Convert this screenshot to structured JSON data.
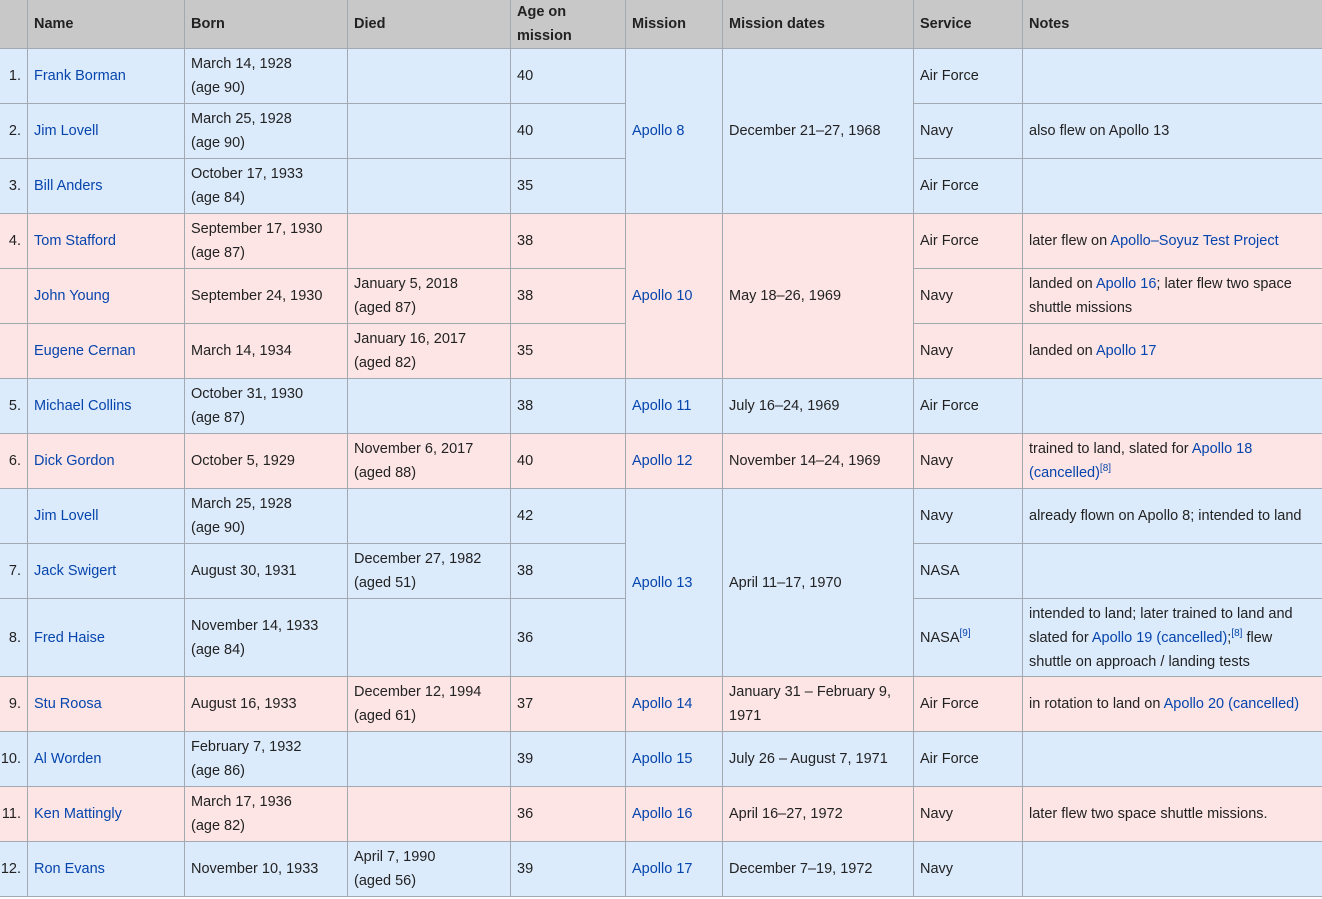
{
  "headers": {
    "num": "",
    "name": "Name",
    "born": "Born",
    "died": "Died",
    "age": "Age on mission",
    "mission": "Mission",
    "dates": "Mission dates",
    "service": "Service",
    "notes": "Notes"
  },
  "rows": [
    {
      "num": "1.",
      "name": "Frank Borman",
      "born": "March 14, 1928",
      "born_age": "(age 90)",
      "died": "",
      "died_age": "",
      "age": "40",
      "service": "Air Force"
    },
    {
      "num": "2.",
      "name": "Jim Lovell",
      "born": "March 25, 1928",
      "born_age": "(age 90)",
      "died": "",
      "died_age": "",
      "age": "40",
      "service": "Navy",
      "notes": "also flew on Apollo 13"
    },
    {
      "num": "3.",
      "name": "Bill Anders",
      "born": "October 17, 1933",
      "born_age": "(age 84)",
      "died": "",
      "died_age": "",
      "age": "35",
      "service": "Air Force"
    },
    {
      "num": "4.",
      "name": "Tom Stafford",
      "born": "September 17, 1930",
      "born_age": "(age 87)",
      "died": "",
      "died_age": "",
      "age": "38",
      "service": "Air Force",
      "notes_pre": "later flew on ",
      "notes_link": "Apollo–Soyuz Test Project"
    },
    {
      "num": "",
      "name": "John Young",
      "born": "September 24, 1930",
      "died": "January 5, 2018",
      "died_age": "(aged 87)",
      "age": "38",
      "service": "Navy",
      "notes_pre": "landed on ",
      "notes_link": "Apollo 16",
      "notes_post": "; later flew two space shuttle missions"
    },
    {
      "num": "",
      "name": "Eugene Cernan",
      "born": "March 14, 1934",
      "died": "January 16, 2017",
      "died_age": "(aged 82)",
      "age": "35",
      "service": "Navy",
      "notes_pre": "landed on ",
      "notes_link": "Apollo 17"
    },
    {
      "num": "5.",
      "name": "Michael Collins",
      "born": "October 31, 1930",
      "born_age": "(age 87)",
      "age": "38",
      "service": "Air Force"
    },
    {
      "num": "6.",
      "name": "Dick Gordon",
      "born": "October 5, 1929",
      "died": "November 6, 2017",
      "died_age": "(aged 88)",
      "age": "40",
      "service": "Navy",
      "notes_pre": "trained to land, slated for ",
      "notes_link": "Apollo 18 (cancelled)",
      "notes_sup": "[8]"
    },
    {
      "num": "",
      "name": "Jim Lovell",
      "born": "March 25, 1928",
      "born_age": "(age 90)",
      "age": "42",
      "service": "Navy",
      "notes": "already flown on Apollo 8; intended to land"
    },
    {
      "num": "7.",
      "name": "Jack Swigert",
      "born": "August 30, 1931",
      "died": "December 27, 1982",
      "died_age": "(aged 51)",
      "age": "38",
      "service": "NASA"
    },
    {
      "num": "8.",
      "name": "Fred Haise",
      "born": "November 14, 1933",
      "born_age": "(age 84)",
      "age": "36",
      "service": "NASA",
      "service_sup": "[9]",
      "notes_pre": "intended to land; later trained to land and slated for ",
      "notes_link": "Apollo 19 (cancelled)",
      "notes_mid": ";",
      "notes_sup": "[8]",
      "notes_post": " flew shuttle on approach / landing tests"
    },
    {
      "num": "9.",
      "name": "Stu Roosa",
      "born": "August 16, 1933",
      "died": "December 12, 1994",
      "died_age": "(aged 61)",
      "age": "37",
      "service": "Air Force",
      "notes_pre": "in rotation to land on ",
      "notes_link": "Apollo 20 (cancelled)"
    },
    {
      "num": "10.",
      "name": "Al Worden",
      "born": "February 7, 1932",
      "born_age": "(age 86)",
      "age": "39",
      "service": "Air Force"
    },
    {
      "num": "11.",
      "name": "Ken Mattingly",
      "born": "March 17, 1936",
      "born_age": "(age 82)",
      "age": "36",
      "service": "Navy",
      "notes": "later flew two space shuttle missions."
    },
    {
      "num": "12.",
      "name": "Ron Evans",
      "born": "November 10, 1933",
      "died": "April 7, 1990",
      "died_age": "(aged 56)",
      "age": "39",
      "service": "Navy"
    }
  ],
  "missions": {
    "apollo8": {
      "name": "Apollo 8",
      "dates": "December 21–27, 1968"
    },
    "apollo10": {
      "name": "Apollo 10",
      "dates": "May 18–26, 1969"
    },
    "apollo11": {
      "name": "Apollo 11",
      "dates": "July 16–24, 1969"
    },
    "apollo12": {
      "name": "Apollo 12",
      "dates": "November 14–24, 1969"
    },
    "apollo13": {
      "name": "Apollo 13",
      "dates": "April 11–17, 1970"
    },
    "apollo14": {
      "name": "Apollo 14",
      "dates": "January 31 – February 9, 1971"
    },
    "apollo15": {
      "name": "Apollo 15",
      "dates": "July 26 – August 7, 1971"
    },
    "apollo16": {
      "name": "Apollo 16",
      "dates": "April 16–27, 1972"
    },
    "apollo17": {
      "name": "Apollo 17",
      "dates": "December 7–19, 1972"
    }
  },
  "colors": {
    "blue_row": "#dcebfc",
    "red_row": "#fde5e5",
    "header": "#c8c8c8",
    "link": "#0645ad"
  }
}
